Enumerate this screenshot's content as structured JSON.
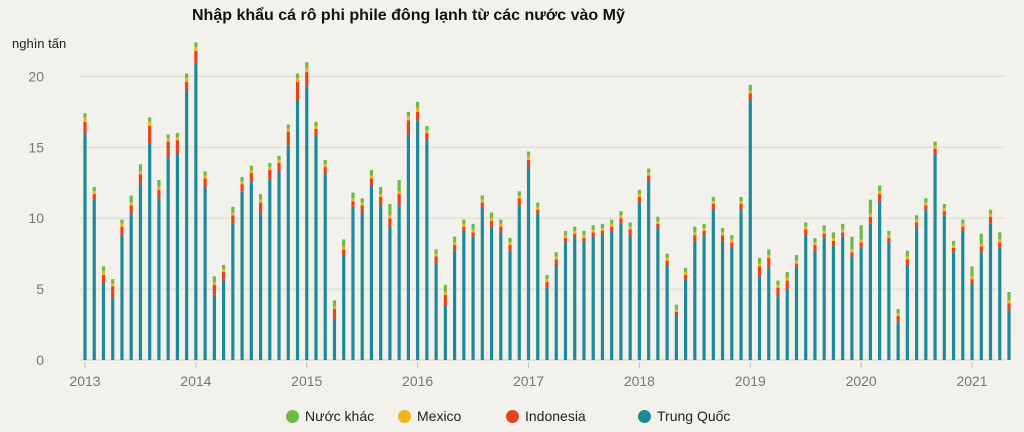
{
  "chart_data": {
    "type": "bar",
    "stacked": true,
    "title": "Nhập khẩu cá rô phi phile đông lạnh từ các nước vào Mỹ",
    "ylabel": "nghìn tấn",
    "ylim": [
      0,
      22
    ],
    "yticks": [
      0,
      5,
      10,
      15,
      20
    ],
    "grid": true,
    "legend_position": "bottom",
    "x_tick_labels": [
      "2013",
      "2014",
      "2015",
      "2016",
      "2017",
      "2018",
      "2019",
      "2020",
      "2021"
    ],
    "months_per_year": 12,
    "series": [
      {
        "name": "Trung Quốc",
        "color": "#1d8a9a",
        "values": [
          16.0,
          11.3,
          5.4,
          4.4,
          8.8,
          10.3,
          12.4,
          15.3,
          11.4,
          14.3,
          14.6,
          19.0,
          20.9,
          12.2,
          4.6,
          5.7,
          9.6,
          11.9,
          12.6,
          10.3,
          12.7,
          13.3,
          15.1,
          18.3,
          19.3,
          15.8,
          13.1,
          2.9,
          7.4,
          10.8,
          10.4,
          12.3,
          10.9,
          9.4,
          10.9,
          15.9,
          16.9,
          15.5,
          6.8,
          3.8,
          7.7,
          9.1,
          8.7,
          10.8,
          9.4,
          9.0,
          7.7,
          10.9,
          13.6,
          10.3,
          5.1,
          6.7,
          8.3,
          8.6,
          8.3,
          8.7,
          8.8,
          9.1,
          9.6,
          8.8,
          11.1,
          12.6,
          9.3,
          6.7,
          3.1,
          5.7,
          8.4,
          8.8,
          10.6,
          8.4,
          7.9,
          10.6,
          18.3,
          5.9,
          6.5,
          4.5,
          5.0,
          6.5,
          8.8,
          7.7,
          8.6,
          8.1,
          8.7,
          7.3,
          7.9,
          9.6,
          11.2,
          8.3,
          2.7,
          6.7,
          9.3,
          10.6,
          14.5,
          10.2,
          7.6,
          9.1,
          5.4,
          7.6,
          9.6,
          7.9,
          3.5
        ]
      },
      {
        "name": "Indonesia",
        "color": "#e8431e",
        "values": [
          0.8,
          0.4,
          0.6,
          0.8,
          0.6,
          0.6,
          0.7,
          1.2,
          0.6,
          1.1,
          0.9,
          0.6,
          0.9,
          0.6,
          0.7,
          0.5,
          0.6,
          0.5,
          0.6,
          0.8,
          0.7,
          0.6,
          1.0,
          1.3,
          1.0,
          0.5,
          0.5,
          0.7,
          0.4,
          0.4,
          0.5,
          0.5,
          0.6,
          0.6,
          0.8,
          1.0,
          0.6,
          0.5,
          0.5,
          0.8,
          0.4,
          0.3,
          0.3,
          0.3,
          0.4,
          0.4,
          0.4,
          0.5,
          0.5,
          0.3,
          0.4,
          0.4,
          0.3,
          0.3,
          0.3,
          0.3,
          0.3,
          0.3,
          0.4,
          0.4,
          0.4,
          0.4,
          0.3,
          0.3,
          0.3,
          0.3,
          0.4,
          0.3,
          0.4,
          0.4,
          0.4,
          0.4,
          0.5,
          0.7,
          0.7,
          0.6,
          0.6,
          0.3,
          0.4,
          0.4,
          0.3,
          0.3,
          0.3,
          0.3,
          0.4,
          0.5,
          0.5,
          0.3,
          0.4,
          0.4,
          0.4,
          0.3,
          0.4,
          0.3,
          0.3,
          0.3,
          0.3,
          0.4,
          0.5,
          0.4,
          0.5
        ]
      },
      {
        "name": "Mexico",
        "color": "#f2b31d",
        "values": [
          0.3,
          0.2,
          0.3,
          0.2,
          0.2,
          0.2,
          0.2,
          0.3,
          0.2,
          0.2,
          0.2,
          0.3,
          0.3,
          0.2,
          0.2,
          0.2,
          0.2,
          0.2,
          0.2,
          0.2,
          0.2,
          0.2,
          0.2,
          0.3,
          0.3,
          0.2,
          0.2,
          0.2,
          0.2,
          0.2,
          0.2,
          0.2,
          0.2,
          0.2,
          0.2,
          0.3,
          0.3,
          0.2,
          0.2,
          0.2,
          0.2,
          0.2,
          0.2,
          0.2,
          0.2,
          0.2,
          0.2,
          0.2,
          0.3,
          0.2,
          0.2,
          0.2,
          0.2,
          0.2,
          0.2,
          0.2,
          0.2,
          0.2,
          0.2,
          0.2,
          0.2,
          0.2,
          0.2,
          0.2,
          0.2,
          0.2,
          0.2,
          0.2,
          0.2,
          0.2,
          0.2,
          0.2,
          0.2,
          0.2,
          0.2,
          0.2,
          0.2,
          0.2,
          0.2,
          0.2,
          0.2,
          0.2,
          0.2,
          0.2,
          0.2,
          0.2,
          0.2,
          0.2,
          0.2,
          0.2,
          0.2,
          0.2,
          0.2,
          0.2,
          0.2,
          0.2,
          0.2,
          0.2,
          0.2,
          0.2,
          0.2
        ]
      },
      {
        "name": "Nước khác",
        "color": "#6dbb45",
        "values": [
          0.3,
          0.3,
          0.3,
          0.3,
          0.3,
          0.5,
          0.5,
          0.3,
          0.5,
          0.3,
          0.3,
          0.3,
          0.3,
          0.3,
          0.4,
          0.3,
          0.4,
          0.3,
          0.3,
          0.4,
          0.3,
          0.3,
          0.3,
          0.3,
          0.4,
          0.3,
          0.3,
          0.4,
          0.5,
          0.4,
          0.3,
          0.4,
          0.5,
          0.8,
          0.8,
          0.3,
          0.4,
          0.3,
          0.3,
          0.5,
          0.4,
          0.3,
          0.4,
          0.3,
          0.4,
          0.3,
          0.3,
          0.3,
          0.3,
          0.3,
          0.3,
          0.3,
          0.3,
          0.3,
          0.3,
          0.3,
          0.3,
          0.3,
          0.3,
          0.3,
          0.3,
          0.3,
          0.3,
          0.3,
          0.3,
          0.3,
          0.4,
          0.3,
          0.3,
          0.3,
          0.3,
          0.3,
          0.4,
          0.4,
          0.4,
          0.3,
          0.4,
          0.4,
          0.3,
          0.3,
          0.4,
          0.4,
          0.4,
          0.9,
          1.0,
          1.0,
          0.4,
          0.3,
          0.3,
          0.4,
          0.3,
          0.3,
          0.3,
          0.3,
          0.3,
          0.3,
          0.7,
          0.7,
          0.3,
          0.5,
          0.6
        ]
      }
    ],
    "legend_order": [
      "Nước khác",
      "Mexico",
      "Indonesia",
      "Trung Quốc"
    ]
  }
}
